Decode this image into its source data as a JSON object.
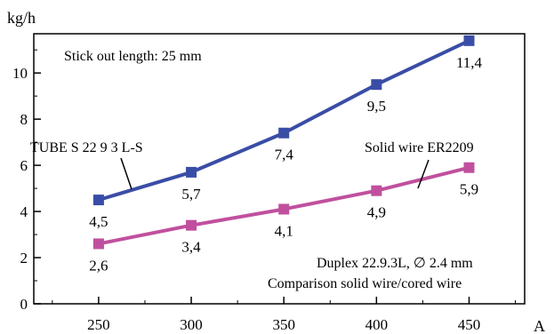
{
  "chart_data": {
    "type": "line",
    "y_unit": "kg/h",
    "x_unit": "A",
    "xlim": [
      215,
      480
    ],
    "ylim": [
      0,
      11.7
    ],
    "x_ticks": [
      250,
      300,
      350,
      400,
      450
    ],
    "x_tick_labels": [
      "250",
      "300",
      "350",
      "400",
      "450"
    ],
    "y_ticks": [
      0,
      2,
      4,
      6,
      8,
      10
    ],
    "y_tick_labels": [
      "0",
      "2",
      "4",
      "6",
      "8",
      "10"
    ],
    "grid": false,
    "annotations": {
      "top": "Stick out length: 25 mm",
      "bottom_line1": "Duplex 22.9.3L, ∅ 2.4 mm",
      "bottom_line2": "Comparison solid wire/cored wire"
    },
    "x": [
      250,
      300,
      350,
      400,
      450
    ],
    "series": [
      {
        "name": "TUBE S 22 9 3 L-S",
        "color": "#3a4da6",
        "values": [
          4.5,
          5.7,
          7.4,
          9.5,
          11.4
        ],
        "point_labels": [
          "4,5",
          "5,7",
          "7,4",
          "9,5",
          "11,4"
        ]
      },
      {
        "name": "Solid wire ER2209",
        "color": "#c0509e",
        "values": [
          2.6,
          3.4,
          4.1,
          4.9,
          5.9
        ],
        "point_labels": [
          "2,6",
          "3,4",
          "4,1",
          "4,9",
          "5,9"
        ]
      }
    ]
  }
}
